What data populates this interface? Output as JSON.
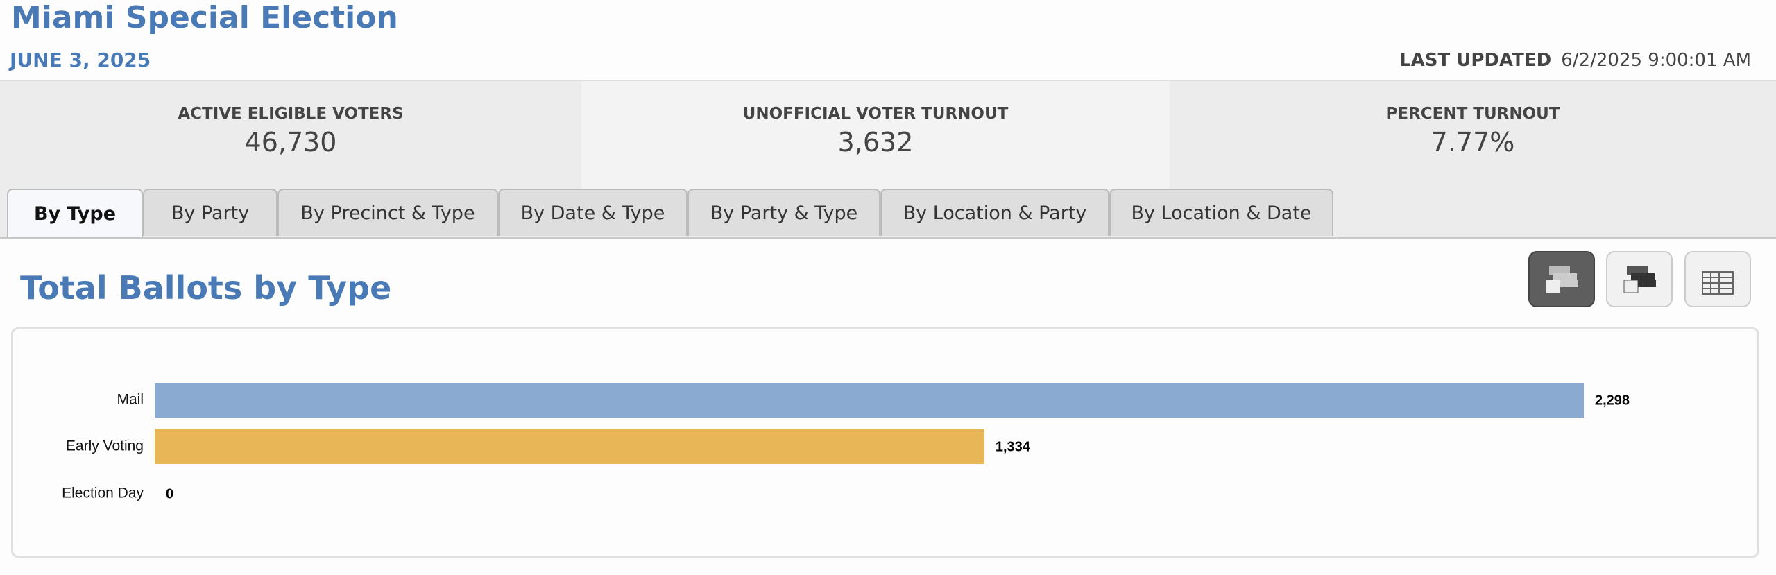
{
  "header": {
    "title": "Miami Special Election",
    "date": "JUNE 3, 2025",
    "last_updated_label": "LAST UPDATED",
    "last_updated_value": "6/2/2025 9:00:01 AM"
  },
  "stats": [
    {
      "label": "ACTIVE ELIGIBLE VOTERS",
      "value": "46,730"
    },
    {
      "label": "UNOFFICIAL VOTER TURNOUT",
      "value": "3,632"
    },
    {
      "label": "PERCENT TURNOUT",
      "value": "7.77%"
    }
  ],
  "tabs": [
    "By Type",
    "By Party",
    "By Precinct & Type",
    "By Date & Type",
    "By Party & Type",
    "By Location & Party",
    "By Location & Date"
  ],
  "section_title": "Total Ballots by Type",
  "chart_data": {
    "type": "bar",
    "orientation": "horizontal",
    "categories": [
      "Mail",
      "Early Voting",
      "Election Day"
    ],
    "values": [
      2298,
      1334,
      0
    ],
    "value_labels": [
      "2,298",
      "1,334",
      "0"
    ],
    "colors": [
      "#8aaad1",
      "#e8b656",
      "#8aaad1"
    ]
  }
}
